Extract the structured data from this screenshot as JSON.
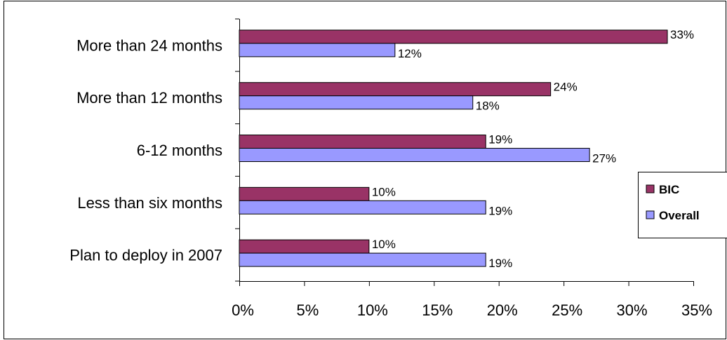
{
  "chart_data": {
    "type": "bar",
    "orientation": "horizontal",
    "categories": [
      "More than 24 months",
      "More than 12 months",
      "6-12 months",
      "Less than six months",
      "Plan to deploy in 2007"
    ],
    "series": [
      {
        "name": "BIC",
        "values": [
          33,
          24,
          19,
          10,
          10
        ],
        "labels": [
          "33%",
          "24%",
          "19%",
          "10%",
          "10%"
        ],
        "color": "#993366"
      },
      {
        "name": "Overall",
        "values": [
          12,
          18,
          27,
          19,
          19
        ],
        "labels": [
          "12%",
          "18%",
          "27%",
          "19%",
          "19%"
        ],
        "color": "#9999ff"
      }
    ],
    "xlim": [
      0,
      35
    ],
    "xticks": [
      0,
      5,
      10,
      15,
      20,
      25,
      30,
      35
    ],
    "xtick_labels": [
      "0%",
      "5%",
      "10%",
      "15%",
      "20%",
      "25%",
      "30%",
      "35%"
    ],
    "title": "",
    "xlabel": "",
    "ylabel": "",
    "grid": false,
    "legend": "right",
    "colors": {
      "border": "#000000",
      "background": "#ffffff"
    }
  }
}
